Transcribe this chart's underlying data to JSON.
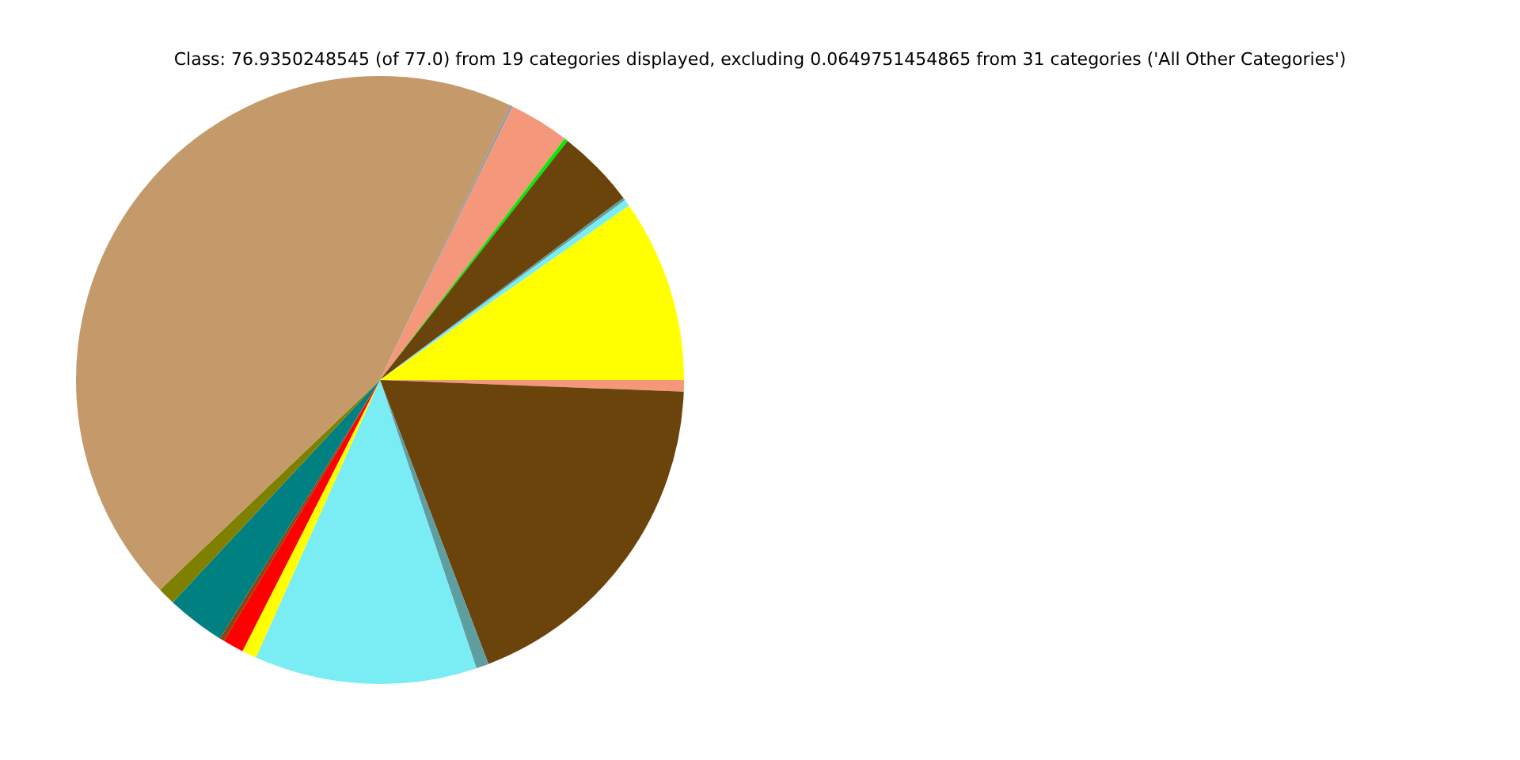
{
  "chart_data": {
    "type": "pie",
    "title": "Class: 76.9350248545 (of 77.0) from 19 categories displayed, excluding 0.0649751454865 from 31 categories ('All Other Categories')",
    "categories": [
      null,
      null,
      null,
      null,
      null,
      null,
      null,
      null,
      null,
      null,
      null,
      null,
      null,
      null,
      null,
      null,
      null
    ],
    "values": [
      0.61,
      18.58,
      0.67,
      11.83,
      0.78,
      1.11,
      0.25,
      3.11,
      0.94,
      44.19,
      0.11,
      3.22,
      0.19,
      4.19,
      0.14,
      0.36,
      9.72
    ],
    "colors": [
      "#f4977a",
      "#6b440b",
      "#5f9ea0",
      "#7aecf4",
      "#ffff00",
      "#ff0000",
      "#8b4513",
      "#008080",
      "#808000",
      "#c49a6a",
      "#8899aa",
      "#f4977a",
      "#00ee00",
      "#6b440b",
      "#5f9ea0",
      "#7aecf4",
      "#ffff00"
    ],
    "legend": false
  }
}
